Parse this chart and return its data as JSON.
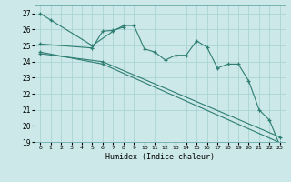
{
  "xlabel": "Humidex (Indice chaleur)",
  "background_color": "#cce8e8",
  "grid_color": "#aad4d4",
  "line_color": "#2d7d72",
  "xlim": [
    -0.5,
    23.5
  ],
  "ylim": [
    19,
    27.5
  ],
  "yticks": [
    19,
    20,
    21,
    22,
    23,
    24,
    25,
    26,
    27
  ],
  "xticks": [
    0,
    1,
    2,
    3,
    4,
    5,
    6,
    7,
    8,
    9,
    10,
    11,
    12,
    13,
    14,
    15,
    16,
    17,
    18,
    19,
    20,
    21,
    22,
    23
  ],
  "lines": [
    {
      "x": [
        0,
        1,
        5,
        7,
        8,
        9,
        10,
        11,
        12,
        13,
        14,
        15,
        16,
        17,
        18,
        19,
        20,
        21,
        22,
        23
      ],
      "y": [
        27.0,
        26.6,
        25.0,
        25.9,
        26.25,
        26.25,
        24.8,
        24.6,
        24.1,
        24.4,
        24.4,
        25.3,
        24.9,
        23.6,
        23.85,
        23.85,
        22.8,
        21.0,
        20.35,
        18.75
      ]
    },
    {
      "x": [
        0,
        5,
        6,
        7,
        8
      ],
      "y": [
        25.1,
        24.85,
        25.9,
        25.95,
        26.15
      ]
    },
    {
      "x": [
        0,
        6,
        23
      ],
      "y": [
        24.5,
        24.0,
        19.3
      ]
    },
    {
      "x": [
        0,
        6,
        23
      ],
      "y": [
        24.6,
        23.85,
        18.95
      ]
    }
  ]
}
